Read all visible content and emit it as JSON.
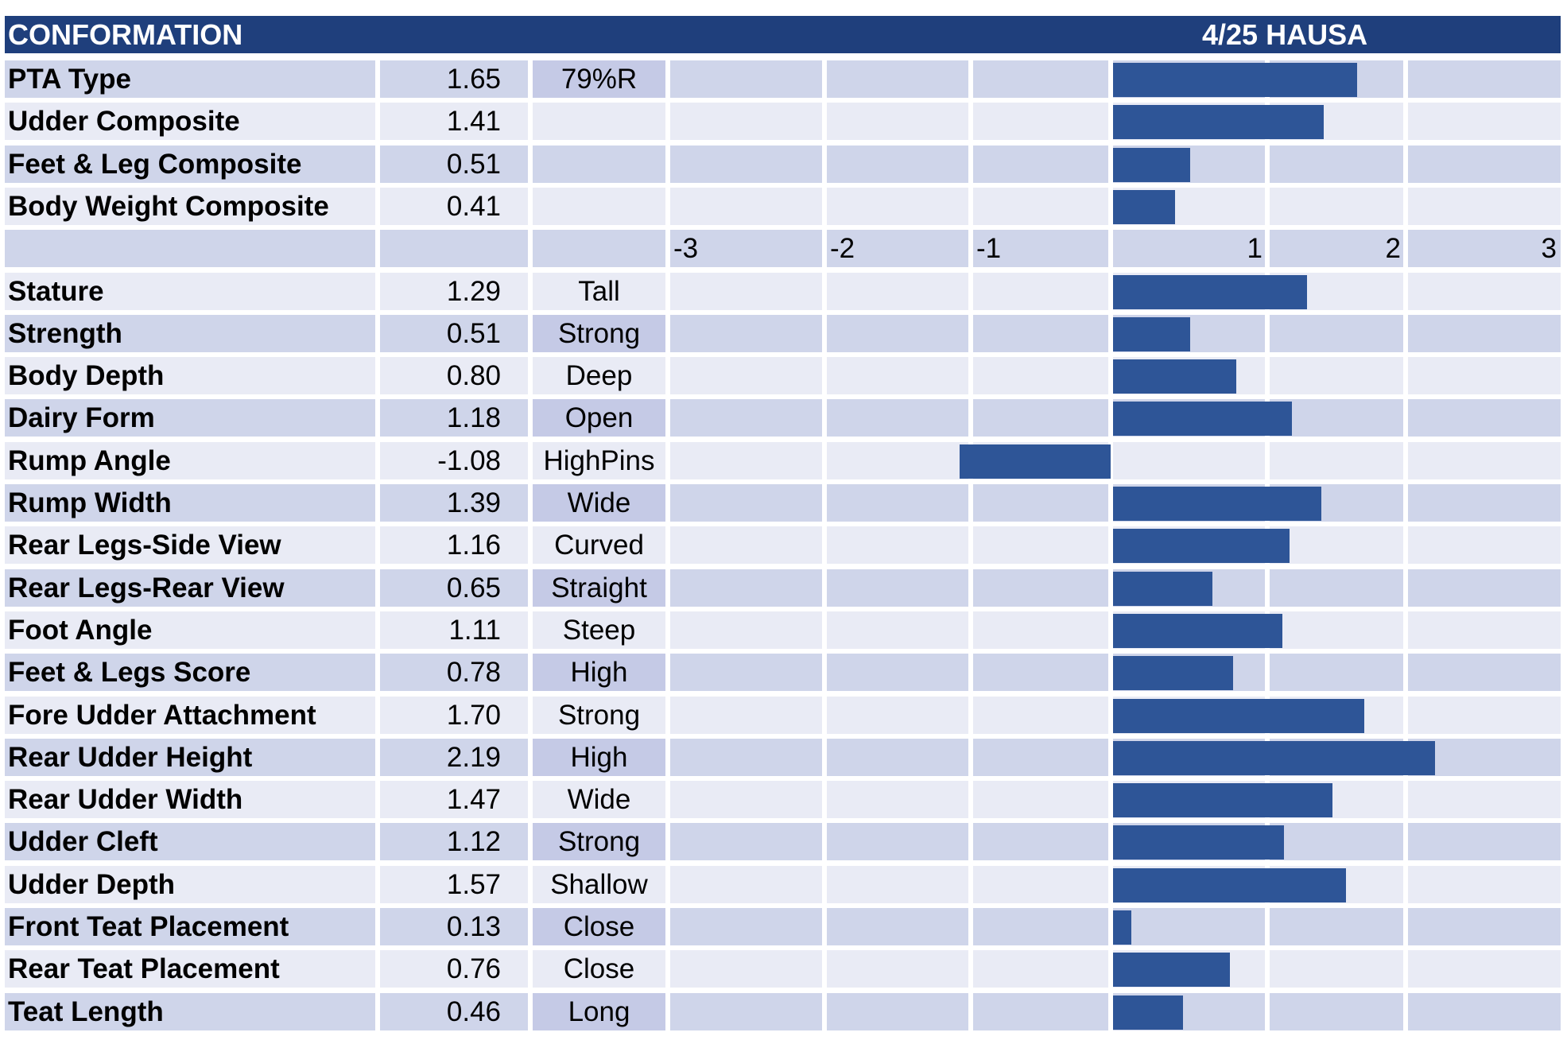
{
  "header": {
    "title": "CONFORMATION",
    "date_label": "4/25 HAUSA"
  },
  "summary": [
    {
      "label": "PTA Type",
      "value": 1.65,
      "value_text": "1.65",
      "extra": "79%R"
    },
    {
      "label": "Udder Composite",
      "value": 1.41,
      "value_text": "1.41",
      "extra": ""
    },
    {
      "label": "Feet & Leg Composite",
      "value": 0.51,
      "value_text": "0.51",
      "extra": ""
    },
    {
      "label": "Body Weight Composite",
      "value": 0.41,
      "value_text": "0.41",
      "extra": ""
    }
  ],
  "axis_ticks": [
    "-3",
    "-2",
    "-1",
    "1",
    "2",
    "3"
  ],
  "traits": [
    {
      "label": "Stature",
      "value": 1.29,
      "value_text": "1.29",
      "desc": "Tall"
    },
    {
      "label": "Strength",
      "value": 0.51,
      "value_text": "0.51",
      "desc": "Strong"
    },
    {
      "label": "Body Depth",
      "value": 0.8,
      "value_text": "0.80",
      "desc": "Deep"
    },
    {
      "label": "Dairy Form",
      "value": 1.18,
      "value_text": "1.18",
      "desc": "Open"
    },
    {
      "label": "Rump Angle",
      "value": -1.08,
      "value_text": "-1.08",
      "desc": "HighPins"
    },
    {
      "label": "Rump Width",
      "value": 1.39,
      "value_text": "1.39",
      "desc": "Wide"
    },
    {
      "label": "Rear Legs-Side View",
      "value": 1.16,
      "value_text": "1.16",
      "desc": "Curved"
    },
    {
      "label": "Rear Legs-Rear View",
      "value": 0.65,
      "value_text": "0.65",
      "desc": "Straight"
    },
    {
      "label": "Foot Angle",
      "value": 1.11,
      "value_text": "1.11",
      "desc": "Steep"
    },
    {
      "label": "Feet & Legs Score",
      "value": 0.78,
      "value_text": "0.78",
      "desc": "High"
    },
    {
      "label": "Fore Udder Attachment",
      "value": 1.7,
      "value_text": "1.70",
      "desc": "Strong"
    },
    {
      "label": "Rear Udder Height",
      "value": 2.19,
      "value_text": "2.19",
      "desc": "High"
    },
    {
      "label": "Rear Udder Width",
      "value": 1.47,
      "value_text": "1.47",
      "desc": "Wide"
    },
    {
      "label": "Udder Cleft",
      "value": 1.12,
      "value_text": "1.12",
      "desc": "Strong"
    },
    {
      "label": "Udder Depth",
      "value": 1.57,
      "value_text": "1.57",
      "desc": "Shallow"
    },
    {
      "label": "Front Teat Placement",
      "value": 0.13,
      "value_text": "0.13",
      "desc": "Close"
    },
    {
      "label": "Rear Teat Placement",
      "value": 0.76,
      "value_text": "0.76",
      "desc": "Close"
    },
    {
      "label": "Teat Length",
      "value": 0.46,
      "value_text": "0.46",
      "desc": "Long"
    }
  ],
  "colors": {
    "header_bg": "#1f3f7c",
    "bar": "#2e5597",
    "row_dark": "#cfd5ea",
    "row_light": "#e9ebf5",
    "desc_dark": "#c5cae6"
  },
  "chart_data": {
    "type": "bar",
    "orientation": "horizontal",
    "title": "CONFORMATION",
    "subtitle": "4/25 HAUSA",
    "xlim": [
      -3,
      3
    ],
    "xticks": [
      -3,
      -2,
      -1,
      1,
      2,
      3
    ],
    "categories": [
      "PTA Type",
      "Udder Composite",
      "Feet & Leg Composite",
      "Body Weight Composite",
      "Stature",
      "Strength",
      "Body Depth",
      "Dairy Form",
      "Rump Angle",
      "Rump Width",
      "Rear Legs-Side View",
      "Rear Legs-Rear View",
      "Foot Angle",
      "Feet & Legs Score",
      "Fore Udder Attachment",
      "Rear Udder Height",
      "Rear Udder Width",
      "Udder Cleft",
      "Udder Depth",
      "Front Teat Placement",
      "Rear Teat Placement",
      "Teat Length"
    ],
    "values": [
      1.65,
      1.41,
      0.51,
      0.41,
      1.29,
      0.51,
      0.8,
      1.18,
      -1.08,
      1.39,
      1.16,
      0.65,
      1.11,
      0.78,
      1.7,
      2.19,
      1.47,
      1.12,
      1.57,
      0.13,
      0.76,
      0.46
    ],
    "grid": true
  }
}
